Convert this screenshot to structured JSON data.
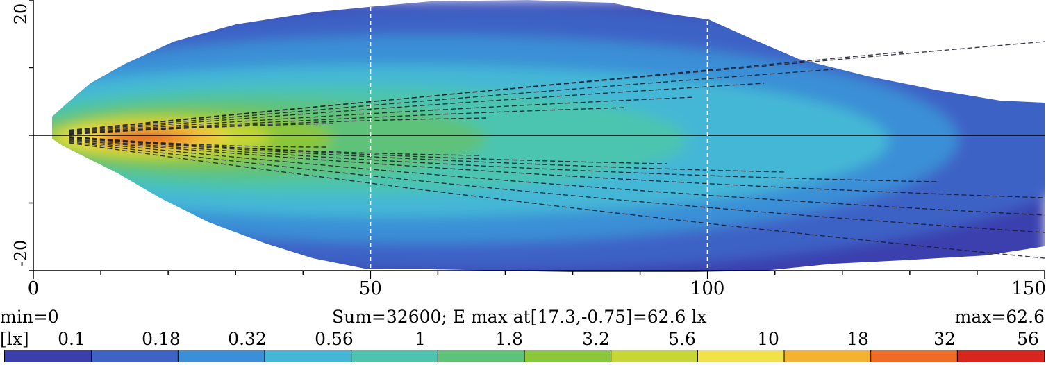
{
  "chart_data": {
    "type": "heatmap",
    "title": "",
    "xlabel": "",
    "ylabel": "",
    "x_range": [
      0,
      150
    ],
    "y_range": [
      -20,
      20
    ],
    "x_ticks": [
      "0",
      "50",
      "100",
      "150"
    ],
    "y_ticks": [
      "-20",
      "20"
    ],
    "dashed_x_lines": [
      50,
      100
    ],
    "horizontal_reference_y": 0,
    "colormap": [
      "#3b3fae",
      "#3e62c6",
      "#3a8fd6",
      "#44b7d6",
      "#4cc4b0",
      "#5ec27a",
      "#8cc63a",
      "#c7d634",
      "#f2e24a",
      "#f4b233",
      "#ef6b26",
      "#d8251e"
    ],
    "contour_levels": [
      0.1,
      0.18,
      0.32,
      0.56,
      1,
      1.8,
      3.2,
      5.6,
      10,
      18,
      32,
      56
    ],
    "peak": {
      "x": 17.3,
      "y": -0.75,
      "value": 62.6
    },
    "min": 0,
    "max": 62.6,
    "sum": 32600,
    "unit": "lx"
  },
  "info": {
    "min_text": "min=0",
    "center_text": "Sum=32600; E max at[17.3,-0.75]=62.6 lx",
    "max_text": "max=62.6"
  },
  "legend": {
    "unit_label": "[lx]",
    "labels": [
      "0.1",
      "0.18",
      "0.32",
      "0.56",
      "1",
      "1.8",
      "3.2",
      "5.6",
      "10",
      "18",
      "32",
      "56"
    ]
  }
}
